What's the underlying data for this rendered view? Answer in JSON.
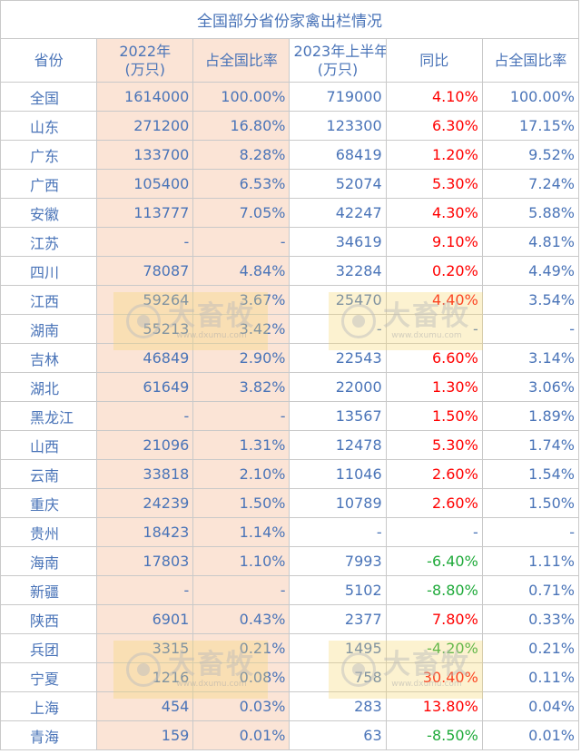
{
  "title": "全国部分省份家禽出栏情况",
  "headers": [
    "省份",
    "2022年\n(万只)",
    "占全国比率",
    "2023年上半年\n(万只)",
    "同比",
    "占全国比率"
  ],
  "rows": [
    {
      "province": "全国",
      "v2022": "1614000",
      "share2022": "100.00%",
      "v2023h1": "719000",
      "yoy": "4.10%",
      "yoy_color": "red",
      "share2023": "100.00%"
    },
    {
      "province": "山东",
      "v2022": "271200",
      "share2022": "16.80%",
      "v2023h1": "123300",
      "yoy": "6.30%",
      "yoy_color": "red",
      "share2023": "17.15%"
    },
    {
      "province": "广东",
      "v2022": "133700",
      "share2022": "8.28%",
      "v2023h1": "68419",
      "yoy": "1.20%",
      "yoy_color": "red",
      "share2023": "9.52%"
    },
    {
      "province": "广西",
      "v2022": "105400",
      "share2022": "6.53%",
      "v2023h1": "52074",
      "yoy": "5.30%",
      "yoy_color": "red",
      "share2023": "7.24%"
    },
    {
      "province": "安徽",
      "v2022": "113777",
      "share2022": "7.05%",
      "v2023h1": "42247",
      "yoy": "4.30%",
      "yoy_color": "red",
      "share2023": "5.88%"
    },
    {
      "province": "江苏",
      "v2022": "-",
      "share2022": "-",
      "v2023h1": "34619",
      "yoy": "9.10%",
      "yoy_color": "red",
      "share2023": "4.81%"
    },
    {
      "province": "四川",
      "v2022": "78087",
      "share2022": "4.84%",
      "v2023h1": "32284",
      "yoy": "0.20%",
      "yoy_color": "red",
      "share2023": "4.49%"
    },
    {
      "province": "江西",
      "v2022": "59264",
      "share2022": "3.67%",
      "v2023h1": "25470",
      "yoy": "4.40%",
      "yoy_color": "red",
      "share2023": "3.54%"
    },
    {
      "province": "湖南",
      "v2022": "55213",
      "share2022": "3.42%",
      "v2023h1": "-",
      "yoy": "-",
      "yoy_color": "blue",
      "share2023": "-"
    },
    {
      "province": "吉林",
      "v2022": "46849",
      "share2022": "2.90%",
      "v2023h1": "22543",
      "yoy": "6.60%",
      "yoy_color": "red",
      "share2023": "3.14%"
    },
    {
      "province": "湖北",
      "v2022": "61649",
      "share2022": "3.82%",
      "v2023h1": "22000",
      "yoy": "1.30%",
      "yoy_color": "red",
      "share2023": "3.06%"
    },
    {
      "province": "黑龙江",
      "v2022": "-",
      "share2022": "-",
      "v2023h1": "13567",
      "yoy": "1.50%",
      "yoy_color": "red",
      "share2023": "1.89%"
    },
    {
      "province": "山西",
      "v2022": "21096",
      "share2022": "1.31%",
      "v2023h1": "12478",
      "yoy": "5.30%",
      "yoy_color": "red",
      "share2023": "1.74%"
    },
    {
      "province": "云南",
      "v2022": "33818",
      "share2022": "2.10%",
      "v2023h1": "11046",
      "yoy": "2.60%",
      "yoy_color": "red",
      "share2023": "1.54%"
    },
    {
      "province": "重庆",
      "v2022": "24239",
      "share2022": "1.50%",
      "v2023h1": "10789",
      "yoy": "2.60%",
      "yoy_color": "red",
      "share2023": "1.50%"
    },
    {
      "province": "贵州",
      "v2022": "18423",
      "share2022": "1.14%",
      "v2023h1": "-",
      "yoy": "-",
      "yoy_color": "blue",
      "share2023": "-"
    },
    {
      "province": "海南",
      "v2022": "17803",
      "share2022": "1.10%",
      "v2023h1": "7993",
      "yoy": "-6.40%",
      "yoy_color": "green",
      "share2023": "1.11%"
    },
    {
      "province": "新疆",
      "v2022": "-",
      "share2022": "-",
      "v2023h1": "5102",
      "yoy": "-8.80%",
      "yoy_color": "green",
      "share2023": "0.71%"
    },
    {
      "province": "陕西",
      "v2022": "6901",
      "share2022": "0.43%",
      "v2023h1": "2377",
      "yoy": "7.80%",
      "yoy_color": "red",
      "share2023": "0.33%"
    },
    {
      "province": "兵团",
      "v2022": "3315",
      "share2022": "0.21%",
      "v2023h1": "1495",
      "yoy": "-4.20%",
      "yoy_color": "green",
      "share2023": "0.21%"
    },
    {
      "province": "宁夏",
      "v2022": "1216",
      "share2022": "0.08%",
      "v2023h1": "758",
      "yoy": "30.40%",
      "yoy_color": "red",
      "share2023": "0.11%"
    },
    {
      "province": "上海",
      "v2022": "454",
      "share2022": "0.03%",
      "v2023h1": "283",
      "yoy": "13.80%",
      "yoy_color": "red",
      "share2023": "0.04%"
    },
    {
      "province": "青海",
      "v2022": "159",
      "share2022": "0.01%",
      "v2023h1": "63",
      "yoy": "-8.50%",
      "yoy_color": "green",
      "share2023": "0.01%"
    }
  ],
  "watermark": {
    "main": "大畜牧",
    "sub": "www.dxumu.com",
    "icon": "camera-lens-icon"
  }
}
